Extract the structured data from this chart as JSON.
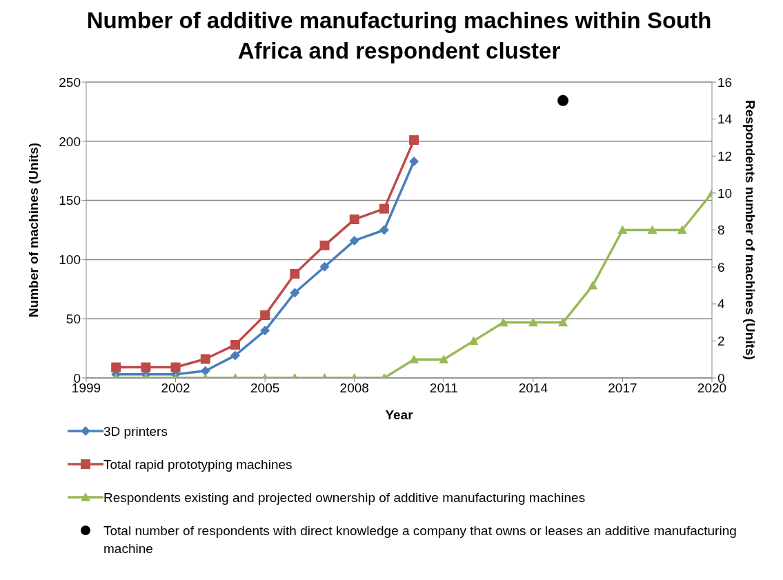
{
  "chart_data": {
    "type": "line",
    "title": "Number of additive manufacturing machines within South Africa and respondent cluster",
    "xlabel": "Year",
    "ylabel": "Number of machines (Units)",
    "y2label": "Respondents number of machines (Units)",
    "x": [
      2000,
      2001,
      2002,
      2003,
      2004,
      2005,
      2006,
      2007,
      2008,
      2009,
      2010,
      2011,
      2012,
      2013,
      2014,
      2015,
      2016,
      2017,
      2018,
      2019,
      2020
    ],
    "xlim": [
      1999,
      2020
    ],
    "xticks": [
      1999,
      2002,
      2005,
      2008,
      2011,
      2014,
      2017,
      2020
    ],
    "ylim": [
      0,
      250
    ],
    "yticks": [
      0,
      50,
      100,
      150,
      200,
      250
    ],
    "y2lim": [
      0,
      16
    ],
    "y2ticks": [
      0,
      2,
      4,
      6,
      8,
      10,
      12,
      14,
      16
    ],
    "grid": "y",
    "legend": "bottom",
    "series": [
      {
        "name": "3D printers",
        "color": "#4a7ebb",
        "marker": "diamond",
        "values": [
          3,
          3,
          3,
          6,
          19,
          40,
          72,
          94,
          116,
          125,
          183,
          null,
          null,
          null,
          null,
          null,
          null,
          null,
          null,
          null,
          null
        ]
      },
      {
        "name": "Total rapid prototyping machines",
        "color": "#be4b48",
        "marker": "square",
        "values": [
          9,
          9,
          9,
          16,
          28,
          53,
          88,
          112,
          134,
          143,
          201,
          null,
          null,
          null,
          null,
          null,
          null,
          null,
          null,
          null,
          null
        ]
      },
      {
        "name": "Respondents existing and projected ownership of additive manufacturing machines",
        "axis": "y2",
        "color": "#98b954",
        "marker": "triangle",
        "values": [
          0,
          0,
          0,
          0,
          0,
          0,
          0,
          0,
          0,
          0,
          1,
          1,
          2,
          3,
          3,
          3,
          5,
          8,
          8,
          8,
          10
        ]
      },
      {
        "name": "Total number of respondents with direct knowledge a company that owns or leases an additive manufacturing machine",
        "type": "scatter",
        "axis": "y2",
        "color": "#000000",
        "marker": "circle",
        "x": [
          2015
        ],
        "values": [
          15
        ]
      }
    ]
  }
}
